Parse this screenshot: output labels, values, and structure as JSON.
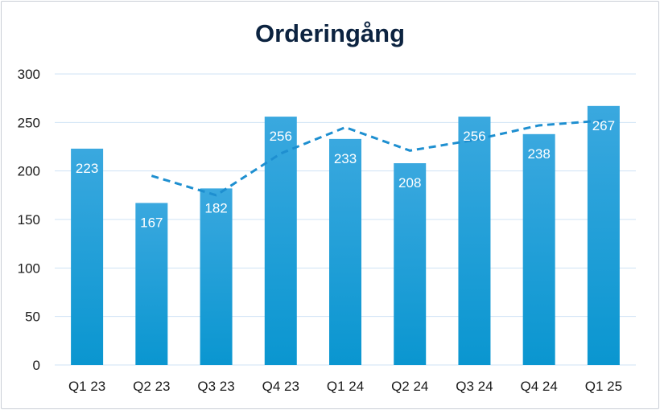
{
  "chart_data": {
    "type": "bar",
    "title": "Orderingång",
    "categories": [
      "Q1 23",
      "Q2 23",
      "Q3 23",
      "Q4 23",
      "Q1 24",
      "Q2 24",
      "Q3 24",
      "Q4 24",
      "Q1 25"
    ],
    "values": [
      223,
      167,
      182,
      256,
      233,
      208,
      256,
      238,
      267
    ],
    "trend_line": {
      "style": "dashed",
      "values": [
        null,
        195,
        175,
        218,
        245,
        221,
        232,
        247,
        252
      ]
    },
    "ylim": [
      0,
      300
    ],
    "yticks": [
      0,
      50,
      100,
      150,
      200,
      250,
      300
    ],
    "grid": true,
    "legend": "none",
    "colors": {
      "bar_top": "#3aa8df",
      "bar_bottom": "#0a96d0",
      "trend": "#1e8fd0",
      "grid": "#cfe3f4",
      "title": "#0c2340"
    }
  }
}
